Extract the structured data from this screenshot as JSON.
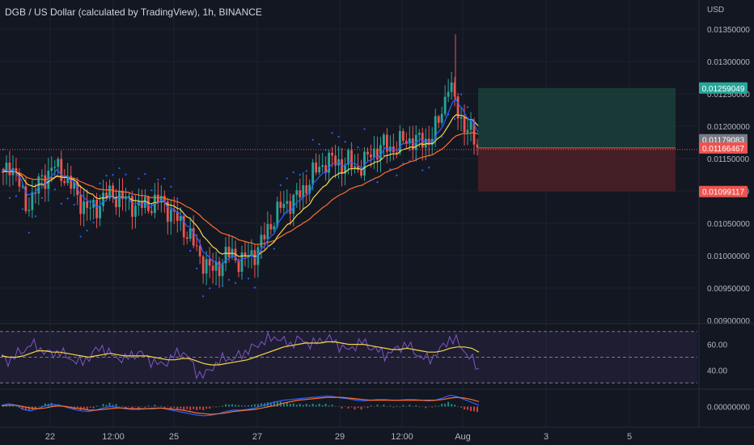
{
  "header": {
    "title": "DGB / US Dollar (calculated by TradingView), 1h, BINANCE",
    "currency": "USD"
  },
  "colors": {
    "background": "#131722",
    "grid": "#1e222d",
    "up": "#26a69a",
    "down": "#ef5350",
    "ema_fast": "#2962ff",
    "ema_mid": "#f5d547",
    "ema_slow": "#ff6d2d",
    "psar": "#2962ff",
    "rsi": "#7e57c2",
    "rsi_ma": "#f5d547",
    "profit_zone": "#1b3d3a",
    "loss_zone": "#4a1f26",
    "macd": "#2962ff",
    "signal": "#ff6d2d"
  },
  "chart_data": [
    {
      "type": "candlestick",
      "pane": "price",
      "ylim": [
        0.009,
        0.0136
      ],
      "y_ticks": [
        "0.01350000",
        "0.01300000",
        "0.01250000",
        "0.01200000",
        "0.01150000",
        "0.01100000",
        "0.01050000",
        "0.01000000",
        "0.00950000",
        "0.00900000"
      ],
      "x_labels": [
        "22",
        "12:00",
        "25",
        "27",
        "29",
        "12:00",
        "Aug",
        "3",
        "5"
      ],
      "close_path": [
        0.0112,
        0.01145,
        0.0112,
        0.01075,
        0.0109,
        0.01112,
        0.01125,
        0.01138,
        0.0113,
        0.01115,
        0.01098,
        0.0108,
        0.0107,
        0.01075,
        0.0109,
        0.01095,
        0.01092,
        0.01085,
        0.0108,
        0.01075,
        0.01078,
        0.01082,
        0.01085,
        0.01072,
        0.01058,
        0.01045,
        0.0103,
        0.01005,
        0.0099,
        0.00975,
        0.00985,
        0.01,
        0.01002,
        0.0099,
        0.00998,
        0.01005,
        0.0102,
        0.01045,
        0.01065,
        0.01078,
        0.01085,
        0.0109,
        0.01105,
        0.01125,
        0.01135,
        0.01148,
        0.01145,
        0.01142,
        0.01145,
        0.01135,
        0.0114,
        0.01155,
        0.01165,
        0.0117,
        0.01165,
        0.01172,
        0.01178,
        0.0118,
        0.01175,
        0.01178,
        0.0119,
        0.0122,
        0.0127,
        0.0123,
        0.01205,
        0.0119,
        0.0117
      ],
      "last_price": "0.01166467",
      "position": {
        "entry": 0.01166467,
        "take_profit": 0.01259049,
        "stop_loss": 0.01099117,
        "entry_label": "0.01166467",
        "take_profit_label": "0.01259049",
        "stop_loss_label": "0.01099117",
        "grey_label": "0.01179083"
      }
    },
    {
      "type": "line",
      "pane": "rsi",
      "ylim": [
        27,
        73
      ],
      "y_ticks": [
        "60.00",
        "40.00"
      ],
      "band": [
        30,
        70
      ],
      "series": [
        {
          "values": [
            50,
            47,
            52,
            55,
            60,
            58,
            54,
            52,
            55,
            50,
            48,
            45,
            50,
            55,
            58,
            52,
            50,
            48,
            52,
            54,
            50,
            46,
            44,
            47,
            52,
            55,
            48,
            38,
            35,
            42,
            46,
            50,
            48,
            52,
            55,
            58,
            62,
            64,
            66,
            62,
            60,
            64,
            62,
            60,
            63,
            65,
            62,
            58,
            55,
            60,
            62,
            58,
            55,
            52,
            54,
            58,
            60,
            55,
            50,
            48,
            52,
            58,
            65,
            62,
            55,
            48,
            40
          ]
        },
        {
          "values": [
            51,
            50,
            50,
            51,
            53,
            55,
            55,
            54,
            54,
            53,
            52,
            51,
            50,
            51,
            52,
            53,
            52,
            51,
            51,
            51,
            51,
            50,
            49,
            48,
            48,
            49,
            49,
            47,
            45,
            44,
            44,
            45,
            46,
            47,
            48,
            50,
            52,
            54,
            56,
            58,
            59,
            60,
            61,
            61,
            61,
            62,
            62,
            61,
            60,
            60,
            60,
            59,
            58,
            57,
            56,
            56,
            57,
            56,
            55,
            54,
            54,
            55,
            57,
            58,
            58,
            57,
            54
          ]
        }
      ]
    },
    {
      "type": "histogram",
      "pane": "macd",
      "ylim": [
        -0.0002,
        0.0002
      ],
      "y_ticks": [
        "0.00000000"
      ],
      "series": [
        {
          "values": [
            2e-05,
            4e-05,
            2e-05,
            -4e-05,
            -6e-05,
            -3e-05,
            1e-05,
            3e-05,
            2e-05,
            -1e-05,
            -4e-05,
            -6e-05,
            -7e-05,
            -5e-05,
            -2e-05,
            0,
            -1e-05,
            -3e-05,
            -4e-05,
            -4e-05,
            -3e-05,
            -2e-05,
            -2e-05,
            -4e-05,
            -6e-05,
            -8e-05,
            -0.0001,
            -0.00012,
            -0.00013,
            -0.00012,
            -0.0001,
            -7e-05,
            -5e-05,
            -5e-05,
            -4e-05,
            -2e-05,
            1e-05,
            4e-05,
            7e-05,
            9e-05,
            0.0001,
            0.00011,
            0.00012,
            0.00013,
            0.00014,
            0.00015,
            0.00014,
            0.00012,
            0.00011,
            9e-05,
            8e-05,
            9e-05,
            0.0001,
            0.0001,
            9e-05,
            9e-05,
            0.0001,
            0.0001,
            9e-05,
            8e-05,
            9e-05,
            0.00012,
            0.00016,
            0.00014,
            0.0001,
            6e-05,
            2e-05
          ]
        },
        {
          "values": [
            1e-05,
            2e-05,
            2e-05,
            0,
            -2e-05,
            -3e-05,
            -2e-05,
            0,
            1e-05,
            0,
            -2e-05,
            -3e-05,
            -5e-05,
            -5e-05,
            -4e-05,
            -3e-05,
            -2e-05,
            -2e-05,
            -3e-05,
            -3e-05,
            -3e-05,
            -3e-05,
            -2e-05,
            -3e-05,
            -4e-05,
            -5e-05,
            -7e-05,
            -9e-05,
            -0.0001,
            -0.00011,
            -0.0001,
            -9e-05,
            -7e-05,
            -6e-05,
            -5e-05,
            -4e-05,
            -2e-05,
            0,
            2e-05,
            5e-05,
            7e-05,
            9e-05,
            0.0001,
            0.00011,
            0.00012,
            0.00013,
            0.00013,
            0.00013,
            0.00012,
            0.00011,
            0.0001,
            9e-05,
            9e-05,
            9e-05,
            9e-05,
            9e-05,
            9e-05,
            9e-05,
            9e-05,
            9e-05,
            9e-05,
            0.0001,
            0.00012,
            0.00013,
            0.00012,
            0.0001,
            7e-05
          ]
        }
      ]
    }
  ]
}
